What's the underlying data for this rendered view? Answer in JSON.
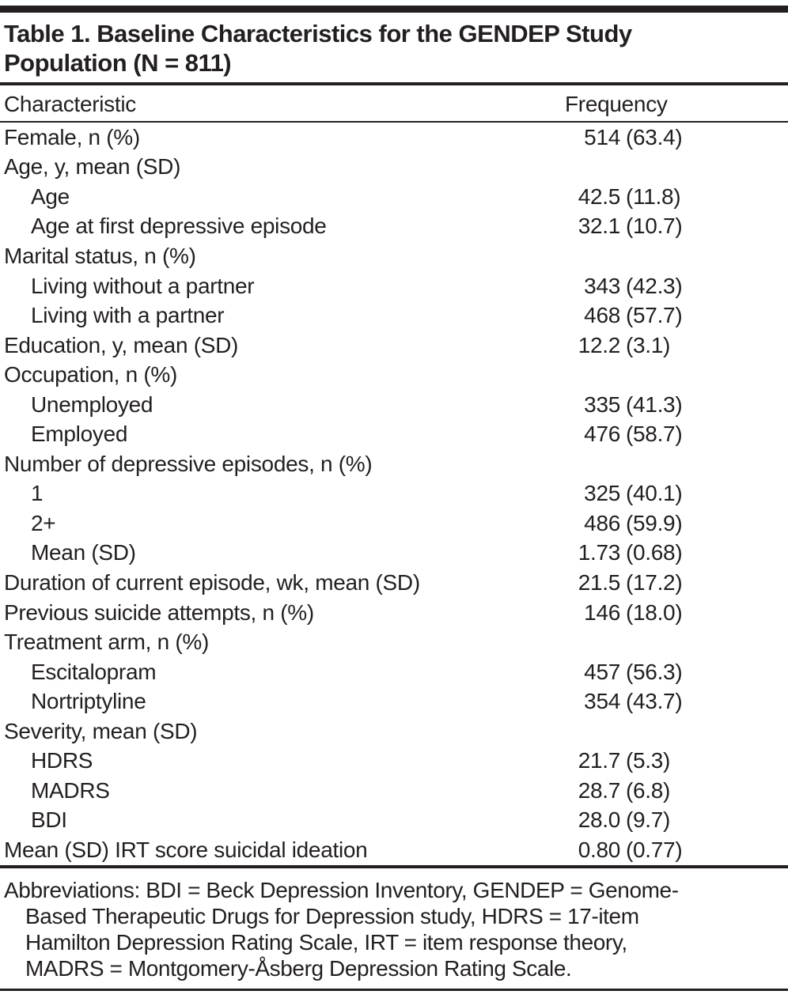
{
  "page": {
    "title_line1": "Table 1. Baseline Characteristics for the GENDEP Study",
    "title_line2": "Population (N = 811)"
  },
  "header": {
    "characteristic": "Characteristic",
    "frequency": "Frequency"
  },
  "table": {
    "rows": [
      {
        "label": "Female, n (%)",
        "frequency": "514 (63.4)",
        "indent": false
      },
      {
        "label": "Age, y, mean (SD)",
        "frequency": "",
        "indent": false
      },
      {
        "label": "Age",
        "frequency": "42.5 (11.8)",
        "indent": true
      },
      {
        "label": "Age at first depressive episode",
        "frequency": "32.1 (10.7)",
        "indent": true
      },
      {
        "label": "Marital status, n (%)",
        "frequency": "",
        "indent": false
      },
      {
        "label": "Living without a partner",
        "frequency": "343 (42.3)",
        "indent": true
      },
      {
        "label": "Living with a partner",
        "frequency": "468 (57.7)",
        "indent": true
      },
      {
        "label": "Education, y, mean (SD)",
        "frequency": "12.2 (3.1)",
        "indent": false
      },
      {
        "label": "Occupation, n (%)",
        "frequency": "",
        "indent": false
      },
      {
        "label": "Unemployed",
        "frequency": "335 (41.3)",
        "indent": true
      },
      {
        "label": "Employed",
        "frequency": "476 (58.7)",
        "indent": true
      },
      {
        "label": "Number of depressive episodes, n (%)",
        "frequency": "",
        "indent": false
      },
      {
        "label": "1",
        "frequency": "325 (40.1)",
        "indent": true
      },
      {
        "label": "2+",
        "frequency": "486 (59.9)",
        "indent": true
      },
      {
        "label": "Mean (SD)",
        "frequency": "1.73 (0.68)",
        "indent": true
      },
      {
        "label": "Duration of current episode, wk, mean (SD)",
        "frequency": "21.5 (17.2)",
        "indent": false
      },
      {
        "label": "Previous suicide attempts, n (%)",
        "frequency": "146 (18.0)",
        "indent": false
      },
      {
        "label": "Treatment arm, n (%)",
        "frequency": "",
        "indent": false
      },
      {
        "label": "Escitalopram",
        "frequency": "457 (56.3)",
        "indent": true
      },
      {
        "label": "Nortriptyline",
        "frequency": "354 (43.7)",
        "indent": true
      },
      {
        "label": "Severity, mean (SD)",
        "frequency": "",
        "indent": false
      },
      {
        "label": "HDRS",
        "frequency": "21.7 (5.3)",
        "indent": true
      },
      {
        "label": "MADRS",
        "frequency": "28.7 (6.8)",
        "indent": true
      },
      {
        "label": "BDI",
        "frequency": "28.0 (9.7)",
        "indent": true
      },
      {
        "label": "Mean (SD) IRT score suicidal ideation",
        "frequency": "0.80 (0.77)",
        "indent": false
      }
    ]
  },
  "footnote": {
    "lines": [
      "Abbreviations: BDI = Beck Depression Inventory, GENDEP = Genome-",
      "Based Therapeutic Drugs for Depression study, HDRS = 17-item",
      "Hamilton Depression Rating Scale, IRT = item response theory,",
      "MADRS = Montgomery-Åsberg Depression Rating Scale."
    ]
  },
  "colors": {
    "text": "#231f20",
    "rule": "#231f20",
    "background": "#ffffff"
  }
}
